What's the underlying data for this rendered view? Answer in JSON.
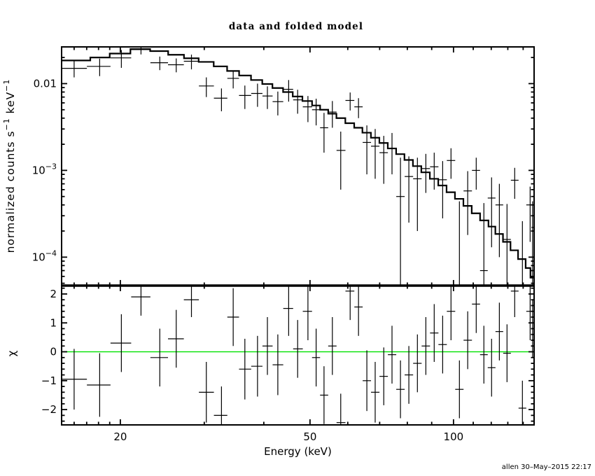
{
  "title": "data and folded model",
  "signature": "allen 30–May–2015 22:17",
  "colors": {
    "foreground": "#000000",
    "background": "#ffffff",
    "zero_line": "#00e100"
  },
  "chart_data": [
    {
      "type": "line",
      "panel": "spectrum",
      "title": "data and folded model",
      "xlabel": "Energy (keV)",
      "ylabel": "normalized counts s^-1 keV^-1",
      "ylabel_segments": [
        [
          "normalized counts s",
          false
        ],
        [
          "−1",
          true
        ],
        [
          " keV",
          false
        ],
        [
          "−1",
          true
        ]
      ],
      "xscale": "log",
      "yscale": "log",
      "xlim": [
        15.06,
        147.6
      ],
      "ylim": [
        4.7e-05,
        0.0265
      ],
      "xticks_major": [
        {
          "v": 20,
          "t": "20"
        },
        {
          "v": 50,
          "t": "50"
        },
        {
          "v": 100,
          "t": "100"
        }
      ],
      "xticks_minor": [
        16,
        17,
        18,
        19,
        30,
        40,
        60,
        70,
        80,
        90,
        110,
        120,
        130,
        140
      ],
      "ytick_labels": [
        {
          "v": 0.01,
          "segs": [
            [
              "0.01",
              false
            ]
          ]
        },
        {
          "v": 0.001,
          "segs": [
            [
              "10",
              false
            ],
            [
              "−3",
              true
            ]
          ]
        },
        {
          "v": 0.0001,
          "segs": [
            [
              "10",
              false
            ],
            [
              "−4",
              true
            ]
          ]
        }
      ],
      "grid": false,
      "legend": "none",
      "series": [
        {
          "name": "data",
          "style": "cross-errorbar",
          "points_format": [
            "energy_keV",
            "rate",
            "err"
          ],
          "points": [
            [
              16.0,
              0.015,
              0.0032
            ],
            [
              18.1,
              0.0158,
              0.0036
            ],
            [
              20.1,
              0.0198,
              0.0046
            ],
            [
              22.1,
              0.0247,
              0.003
            ],
            [
              24.2,
              0.0174,
              0.0031
            ],
            [
              26.2,
              0.0165,
              0.003
            ],
            [
              28.2,
              0.0181,
              0.0035
            ],
            [
              30.3,
              0.0094,
              0.0024
            ],
            [
              32.6,
              0.0068,
              0.002
            ],
            [
              34.5,
              0.0115,
              0.0027
            ],
            [
              36.5,
              0.0073,
              0.0022
            ],
            [
              38.8,
              0.0077,
              0.0023
            ],
            [
              40.7,
              0.0072,
              0.0021
            ],
            [
              42.8,
              0.0062,
              0.0019
            ],
            [
              45.1,
              0.0086,
              0.0024
            ],
            [
              47.1,
              0.0065,
              0.002
            ],
            [
              49.5,
              0.0054,
              0.0018
            ],
            [
              51.5,
              0.005,
              0.0017
            ],
            [
              53.5,
              0.0031,
              0.0015
            ],
            [
              55.7,
              0.0047,
              0.0016
            ],
            [
              58.0,
              0.0017,
              0.0011
            ],
            [
              60.7,
              0.0064,
              0.0015
            ],
            [
              63.2,
              0.0054,
              0.0014
            ],
            [
              65.8,
              0.0021,
              0.0012
            ],
            [
              68.5,
              0.0019,
              0.0011
            ],
            [
              71.4,
              0.0016,
              0.0009
            ],
            [
              74.3,
              0.0018,
              0.0009
            ],
            [
              77.4,
              0.0005,
              0.0009
            ],
            [
              80.6,
              0.00085,
              0.0006
            ],
            [
              84.0,
              0.0008,
              0.0006
            ],
            [
              87.5,
              0.00105,
              0.0005
            ],
            [
              91.1,
              0.0011,
              0.0005
            ],
            [
              94.9,
              0.00078,
              0.0005
            ],
            [
              98.8,
              0.0013,
              0.0005
            ],
            [
              102.9,
              4e-05,
              0.0004
            ],
            [
              107.1,
              0.00058,
              0.0004
            ],
            [
              111.6,
              0.001,
              0.0004
            ],
            [
              115.8,
              7e-05,
              0.00035
            ],
            [
              120.2,
              0.00048,
              0.00035
            ],
            [
              124.8,
              0.0004,
              0.0003
            ],
            [
              129.5,
              0.00016,
              0.00025
            ],
            [
              134.4,
              0.00077,
              0.0003
            ],
            [
              139.5,
              1e-05,
              0.00025
            ],
            [
              144.8,
              0.0004,
              0.00025
            ],
            [
              146.5,
              0.00022,
              0.00022
            ]
          ]
        },
        {
          "name": "folded model",
          "style": "step-histogram",
          "steps_format": [
            "e_lo_keV",
            "e_hi_keV",
            "rate"
          ],
          "steps": [
            [
              15.06,
              17.3,
              0.0185
            ],
            [
              17.3,
              19.0,
              0.02
            ],
            [
              19.0,
              21.0,
              0.0222
            ],
            [
              21.0,
              23.1,
              0.025
            ],
            [
              23.1,
              25.2,
              0.0237
            ],
            [
              25.2,
              27.2,
              0.0215
            ],
            [
              27.2,
              29.2,
              0.0196
            ],
            [
              29.2,
              31.4,
              0.0178
            ],
            [
              31.4,
              33.5,
              0.0158
            ],
            [
              33.5,
              35.5,
              0.014
            ],
            [
              35.5,
              37.6,
              0.0124
            ],
            [
              37.6,
              39.7,
              0.011
            ],
            [
              39.7,
              41.7,
              0.0099
            ],
            [
              41.7,
              43.9,
              0.0089
            ],
            [
              43.9,
              46.0,
              0.008
            ],
            [
              46.0,
              48.2,
              0.0071
            ],
            [
              48.2,
              50.5,
              0.0063
            ],
            [
              50.5,
              52.5,
              0.0056
            ],
            [
              52.5,
              54.6,
              0.005
            ],
            [
              54.6,
              56.8,
              0.0045
            ],
            [
              56.8,
              59.3,
              0.004
            ],
            [
              59.3,
              61.9,
              0.0035
            ],
            [
              61.9,
              64.4,
              0.0031
            ],
            [
              64.4,
              67.1,
              0.00272
            ],
            [
              67.1,
              69.9,
              0.00238
            ],
            [
              69.9,
              72.8,
              0.00207
            ],
            [
              72.8,
              75.8,
              0.00179
            ],
            [
              75.8,
              78.9,
              0.00154
            ],
            [
              78.9,
              82.2,
              0.00132
            ],
            [
              82.2,
              85.6,
              0.00112
            ],
            [
              85.6,
              89.2,
              0.00095
            ],
            [
              89.2,
              92.9,
              0.0008
            ],
            [
              92.9,
              96.7,
              0.00067
            ],
            [
              96.7,
              100.7,
              0.00056
            ],
            [
              100.7,
              104.9,
              0.00047
            ],
            [
              104.9,
              109.2,
              0.00039
            ],
            [
              109.2,
              113.7,
              0.00032
            ],
            [
              113.7,
              118.4,
              0.000265
            ],
            [
              118.4,
              122.4,
              0.000225
            ],
            [
              122.4,
              127.0,
              0.000185
            ],
            [
              127.0,
              131.7,
              0.00015
            ],
            [
              131.7,
              136.6,
              0.00012
            ],
            [
              136.6,
              141.7,
              9.5e-05
            ],
            [
              141.7,
              145.0,
              7.5e-05
            ],
            [
              145.0,
              147.6,
              5.8e-05
            ]
          ]
        }
      ]
    },
    {
      "type": "scatter",
      "panel": "residuals",
      "xlabel": "Energy (keV)",
      "ylabel": "χ",
      "xscale": "log",
      "yscale": "linear",
      "xlim": [
        15.06,
        147.6
      ],
      "ylim": [
        -2.53,
        2.29
      ],
      "ytick_labels": [
        {
          "v": 2,
          "t": "2"
        },
        {
          "v": 1,
          "t": "1"
        },
        {
          "v": 0,
          "t": "0"
        },
        {
          "v": -1,
          "t": "−1"
        },
        {
          "v": -2,
          "t": "−2"
        }
      ],
      "ytick_minor_step": 0.2,
      "zero_line": 0,
      "zero_line_color": "#00e100",
      "series": [
        {
          "name": "chi residuals",
          "style": "cross-errorbar",
          "points_format": [
            "energy_keV",
            "chi",
            "err"
          ],
          "points": [
            [
              16.0,
              -0.95,
              1.05
            ],
            [
              18.1,
              -1.15,
              1.1
            ],
            [
              20.1,
              0.3,
              1.0
            ],
            [
              22.1,
              1.9,
              0.65
            ],
            [
              24.2,
              -0.2,
              1.0
            ],
            [
              26.2,
              0.45,
              1.0
            ],
            [
              28.2,
              1.8,
              0.6
            ],
            [
              30.3,
              -1.4,
              1.05
            ],
            [
              32.6,
              -2.2,
              1.0
            ],
            [
              34.5,
              1.2,
              1.0
            ],
            [
              36.5,
              -0.6,
              1.05
            ],
            [
              38.8,
              -0.5,
              1.05
            ],
            [
              40.7,
              0.2,
              1.0
            ],
            [
              42.8,
              -0.45,
              1.05
            ],
            [
              45.1,
              1.5,
              0.95
            ],
            [
              47.1,
              0.1,
              1.0
            ],
            [
              49.5,
              1.4,
              1.0
            ],
            [
              51.5,
              -0.2,
              1.0
            ],
            [
              53.5,
              -1.5,
              1.0
            ],
            [
              55.7,
              0.2,
              1.0
            ],
            [
              58.0,
              -2.45,
              1.0
            ],
            [
              60.7,
              2.1,
              1.0
            ],
            [
              63.2,
              1.55,
              1.0
            ],
            [
              65.8,
              -1.0,
              1.05
            ],
            [
              68.5,
              -1.4,
              1.05
            ],
            [
              71.4,
              -0.85,
              1.0
            ],
            [
              74.3,
              -0.1,
              1.0
            ],
            [
              77.4,
              -1.3,
              1.0
            ],
            [
              80.6,
              -0.8,
              1.0
            ],
            [
              84.0,
              -0.4,
              1.0
            ],
            [
              87.5,
              0.2,
              1.0
            ],
            [
              91.1,
              0.65,
              1.0
            ],
            [
              94.9,
              0.25,
              1.0
            ],
            [
              98.8,
              1.4,
              1.0
            ],
            [
              102.9,
              -1.3,
              1.0
            ],
            [
              107.1,
              0.4,
              1.0
            ],
            [
              111.6,
              1.65,
              1.0
            ],
            [
              115.8,
              -0.1,
              1.0
            ],
            [
              120.2,
              -0.55,
              1.0
            ],
            [
              124.8,
              0.7,
              1.0
            ],
            [
              129.5,
              -0.05,
              1.0
            ],
            [
              134.4,
              2.1,
              0.9
            ],
            [
              139.5,
              -1.95,
              0.95
            ],
            [
              144.8,
              1.4,
              1.0
            ],
            [
              146.5,
              0.8,
              1.0
            ]
          ]
        }
      ]
    }
  ]
}
